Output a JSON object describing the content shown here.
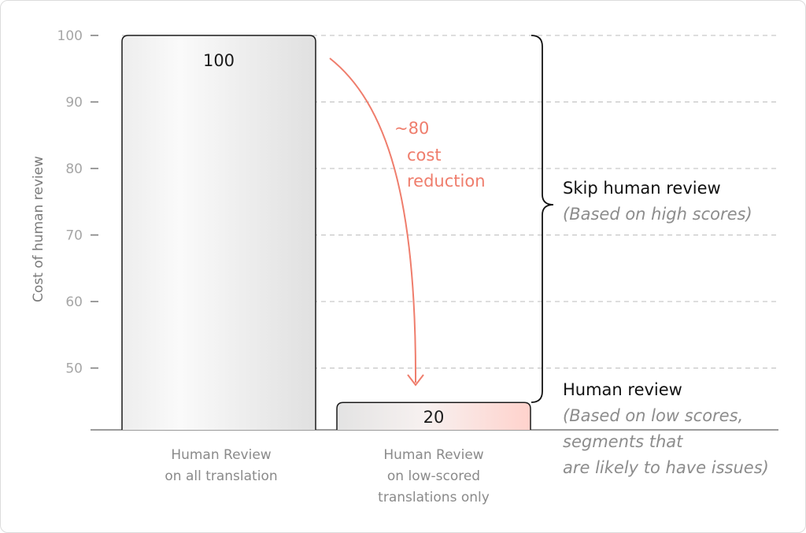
{
  "chart_data": {
    "type": "bar",
    "title": "",
    "xlabel": "",
    "ylabel": "Cost of  human review",
    "ylim": [
      40,
      100
    ],
    "yticks": [
      100,
      90,
      80,
      70,
      60,
      50
    ],
    "grid": true,
    "categories": [
      [
        "Human Review",
        "on all translation"
      ],
      [
        "Human Review",
        "on low-scored",
        "translations only"
      ]
    ],
    "values": [
      100,
      20
    ],
    "data_labels": [
      "100",
      "20"
    ],
    "arrow_annotation": [
      "~80",
      "cost",
      "reduction"
    ],
    "brace_annotation": {
      "title": "Skip human review",
      "subtitle": "(Based on high scores)"
    },
    "low_annotation": {
      "title": "Human review",
      "lines": [
        "(Based on low scores,",
        "segments that",
        "are likely to have issues)"
      ]
    }
  },
  "colors": {
    "accent": "#ef7d6c",
    "grid": "#bdbdbd",
    "bar_stroke": "#1a1a1a",
    "tick": "#a6a6a6"
  }
}
